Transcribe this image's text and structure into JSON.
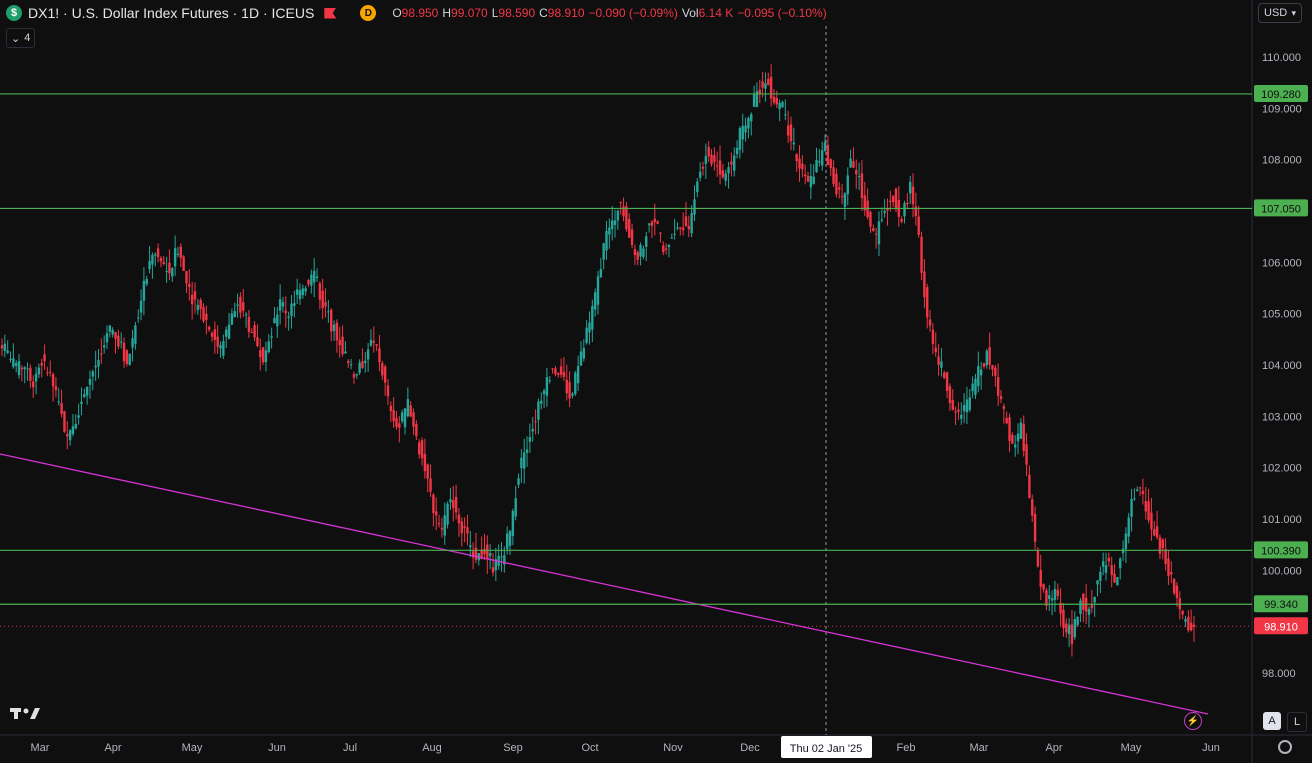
{
  "header": {
    "symbol_badge": "$",
    "title": "DX1! · U.S. Dollar Index Futures · 1D · ICEUS",
    "d_badge": "D",
    "ohlc": [
      {
        "k": "O",
        "v": "98.950"
      },
      {
        "k": "H",
        "v": "99.070"
      },
      {
        "k": "L",
        "v": "98.590"
      },
      {
        "k": "C",
        "v": "98.910"
      },
      {
        "k": "",
        "v": "−0.090 (−0.09%)"
      },
      {
        "k": "Vol",
        "v": "6.14 K"
      },
      {
        "k": "",
        "v": "−0.095 (−0.10%)"
      }
    ],
    "indicators_count": "4",
    "currency": "USD"
  },
  "controls": {
    "auto": "A",
    "log": "L",
    "logo": "17"
  },
  "colors": {
    "up": "#26a69a",
    "down": "#f23645",
    "hline": "#4caf50",
    "hline_label": "#4caf50",
    "trend": "#d633d6",
    "last_price": "#f23645"
  },
  "chart_data": {
    "type": "candlestick",
    "y_ticks": [
      "98.000",
      "99.000",
      "100.000",
      "101.000",
      "102.000",
      "103.000",
      "104.000",
      "105.000",
      "106.000",
      "107.000",
      "108.000",
      "109.000",
      "110.000"
    ],
    "ylim": [
      97.5,
      110.3
    ],
    "x_ticks": [
      "Mar",
      "Apr",
      "May",
      "Jun",
      "Jul",
      "Aug",
      "Sep",
      "Oct",
      "Nov",
      "Dec",
      "Feb",
      "Mar",
      "Apr",
      "May",
      "Jun"
    ],
    "crosshair_label": "Thu 02 Jan '25",
    "horizontal_levels": [
      {
        "label": "109.280",
        "value": 109.28
      },
      {
        "label": "107.050",
        "value": 107.05
      },
      {
        "label": "100.390",
        "value": 100.39
      },
      {
        "label": "99.340",
        "value": 99.34
      }
    ],
    "last_price": {
      "label": "98.910",
      "value": 98.91
    },
    "close_series": [
      104.5,
      104.2,
      103.9,
      104.0,
      103.7,
      104.1,
      103.8,
      103.2,
      102.6,
      103.0,
      103.5,
      103.9,
      104.2,
      104.7,
      104.5,
      104.0,
      104.8,
      105.6,
      106.2,
      106.0,
      105.8,
      106.3,
      105.6,
      105.2,
      105.0,
      104.6,
      104.3,
      104.8,
      105.2,
      104.9,
      104.5,
      104.2,
      104.7,
      105.2,
      105.0,
      105.4,
      105.6,
      105.8,
      105.2,
      104.8,
      104.5,
      104.0,
      103.8,
      104.2,
      104.5,
      103.9,
      103.0,
      102.8,
      103.2,
      102.6,
      102.0,
      101.2,
      100.8,
      101.5,
      101.0,
      100.6,
      100.3,
      100.4,
      100.1,
      100.2,
      100.8,
      101.9,
      102.5,
      103.0,
      103.5,
      104.0,
      103.8,
      103.4,
      103.9,
      104.6,
      105.3,
      106.3,
      106.8,
      107.2,
      106.5,
      106.0,
      106.6,
      106.9,
      106.2,
      106.5,
      106.8,
      106.7,
      107.6,
      108.1,
      108.0,
      107.7,
      107.9,
      108.5,
      108.8,
      109.3,
      109.6,
      109.2,
      109.0,
      108.4,
      107.8,
      107.5,
      107.9,
      108.2,
      107.6,
      107.2,
      108.0,
      107.6,
      106.9,
      106.5,
      107.0,
      107.3,
      106.8,
      107.5,
      106.4,
      105.0,
      104.2,
      103.8,
      103.2,
      103.0,
      103.4,
      103.9,
      104.2,
      103.8,
      103.0,
      102.5,
      102.8,
      101.5,
      100.0,
      99.3,
      99.6,
      99.0,
      98.7,
      99.4,
      99.2,
      99.8,
      100.2,
      99.7,
      100.5,
      101.3,
      101.6,
      101.0,
      100.6,
      100.2,
      99.6,
      99.0,
      98.91
    ],
    "low_point_date_label": "",
    "trendline": {
      "start": {
        "x_index": 0,
        "value": 102.3
      },
      "end": {
        "x_index": 140,
        "value": 97.2
      }
    }
  }
}
